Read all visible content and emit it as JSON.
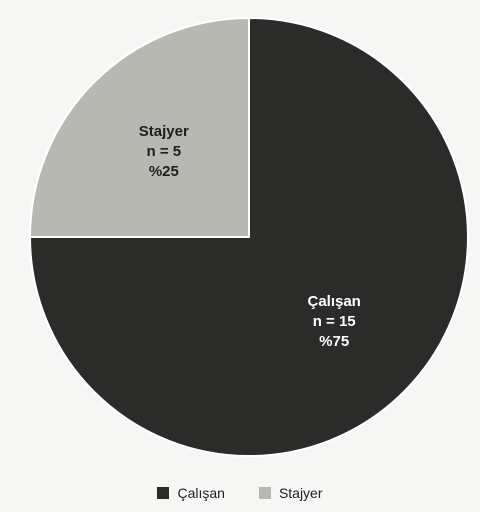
{
  "chart_data": {
    "type": "pie",
    "categories": [
      "Çalışan",
      "Stajyer"
    ],
    "values": [
      15,
      5
    ],
    "percentages": [
      75,
      25
    ],
    "counts_label": [
      "n = 15",
      "n = 5"
    ],
    "percent_label": [
      "%75",
      "%25"
    ],
    "colors": [
      "#2b2b2a",
      "#b8b8b2"
    ],
    "label_colors": [
      "#ffffff",
      "#1e1e1e"
    ],
    "start_angle_deg": 0,
    "direction": "clockwise",
    "legend_position": "bottom",
    "title": ""
  }
}
